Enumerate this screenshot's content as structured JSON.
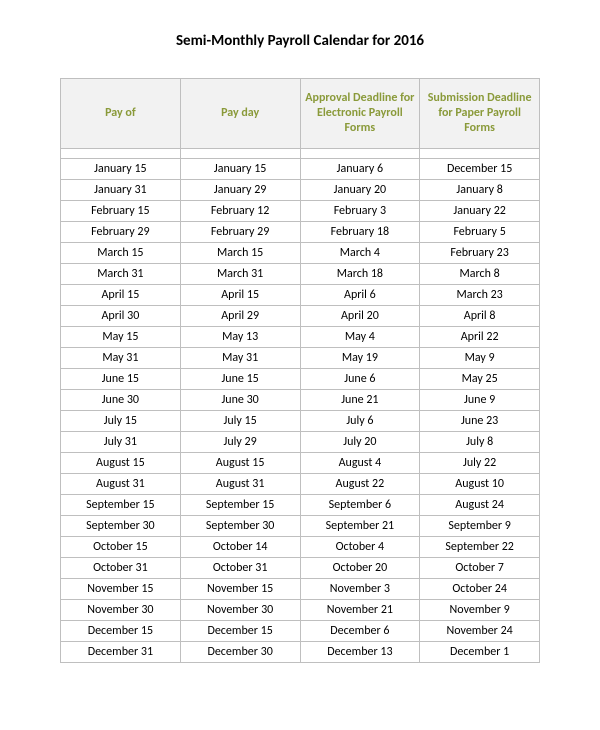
{
  "title": "Semi-Monthly Payroll Calendar for 2016",
  "table": {
    "type": "table",
    "columns": [
      "Pay of",
      "Pay day",
      "Approval Deadline for Electronic Payroll Forms",
      "Submission Deadline for Paper Payroll Forms"
    ],
    "header_color": "#8a9a3a",
    "header_bg": "#f2f2f2",
    "border_color": "#bfbfbf",
    "cell_fontsize": 12,
    "header_fontsize": 12,
    "rows": [
      [
        "January 15",
        "January 15",
        "January 6",
        "December 15"
      ],
      [
        "January 31",
        "January 29",
        "January 20",
        "January 8"
      ],
      [
        "February 15",
        "February 12",
        "February 3",
        "January 22"
      ],
      [
        "February 29",
        "February 29",
        "February 18",
        "February 5"
      ],
      [
        "March 15",
        "March 15",
        "March 4",
        "February 23"
      ],
      [
        "March 31",
        "March 31",
        "March 18",
        "March 8"
      ],
      [
        "April 15",
        "April 15",
        "April 6",
        "March 23"
      ],
      [
        "April 30",
        "April 29",
        "April 20",
        "April 8"
      ],
      [
        "May 15",
        "May 13",
        "May 4",
        "April 22"
      ],
      [
        "May 31",
        "May 31",
        "May 19",
        "May 9"
      ],
      [
        "June 15",
        "June 15",
        "June 6",
        "May 25"
      ],
      [
        "June 30",
        "June 30",
        "June 21",
        "June 9"
      ],
      [
        "July 15",
        "July 15",
        "July 6",
        "June 23"
      ],
      [
        "July 31",
        "July 29",
        "July 20",
        "July 8"
      ],
      [
        "August 15",
        "August 15",
        "August 4",
        "July 22"
      ],
      [
        "August 31",
        "August 31",
        "August 22",
        "August 10"
      ],
      [
        "September 15",
        "September 15",
        "September 6",
        "August 24"
      ],
      [
        "September 30",
        "September 30",
        "September 21",
        "September 9"
      ],
      [
        "October 15",
        "October 14",
        "October 4",
        "September 22"
      ],
      [
        "October 31",
        "October 31",
        "October 20",
        "October 7"
      ],
      [
        "November 15",
        "November 15",
        "November 3",
        "October 24"
      ],
      [
        "November 30",
        "November 30",
        "November 21",
        "November 9"
      ],
      [
        "December 15",
        "December 15",
        "December 6",
        "November 24"
      ],
      [
        "December 31",
        "December 30",
        "December 13",
        "December 1"
      ]
    ]
  }
}
